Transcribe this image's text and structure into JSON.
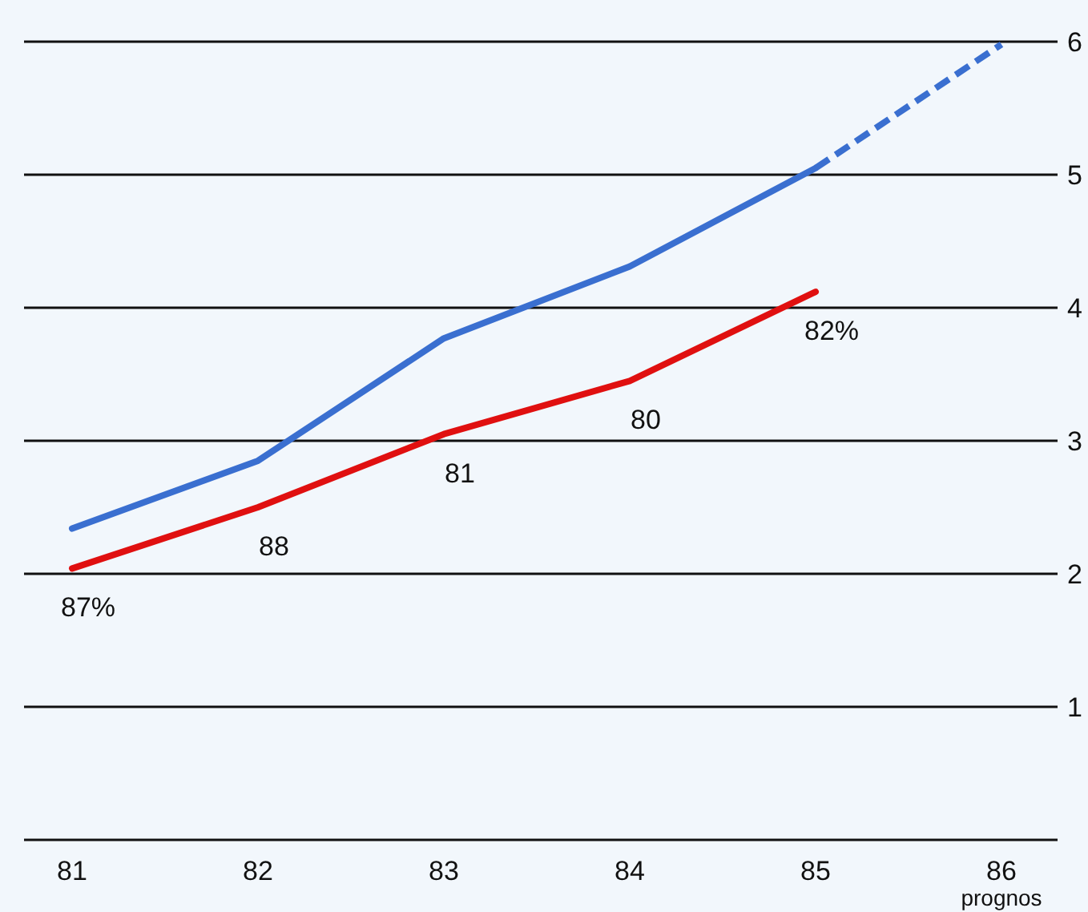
{
  "chart_data": {
    "type": "line",
    "categories": [
      "81",
      "82",
      "83",
      "84",
      "85",
      "86"
    ],
    "series": [
      {
        "color": "#3a6fd0",
        "values": [
          2.34,
          2.85,
          3.77,
          4.31,
          5.05,
          null
        ],
        "line_style": "solid"
      },
      {
        "color": "#3a6fd0",
        "values": [
          null,
          null,
          null,
          null,
          5.05,
          5.98
        ],
        "line_style": "dashed"
      },
      {
        "color": "#e01010",
        "values": [
          2.04,
          2.5,
          3.05,
          3.45,
          4.12,
          null
        ],
        "line_style": "solid"
      }
    ],
    "ylim": [
      0,
      6
    ],
    "yticks": [
      {
        "value": 0,
        "label": null
      },
      1,
      2,
      3,
      4,
      5,
      6
    ],
    "grid": "y",
    "marker": "none",
    "annotations": [
      {
        "text": "87%",
        "x": "81",
        "y": 2.04
      },
      {
        "text": "88",
        "x": "82",
        "y": 2.5
      },
      {
        "text": "81",
        "x": "83",
        "y": 3.05
      },
      {
        "text": "80",
        "x": "84",
        "y": 3.45
      },
      {
        "text": "82%",
        "x": "85",
        "y": 4.12
      },
      "prognos"
    ]
  }
}
